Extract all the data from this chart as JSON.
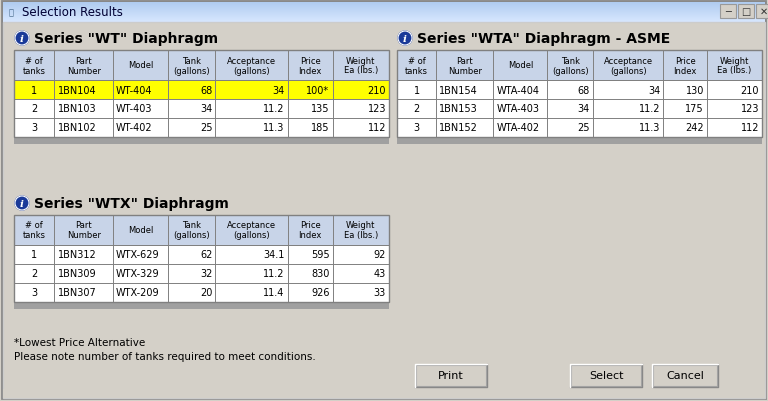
{
  "title": "Selection Results",
  "bg_color": "#d4d0c8",
  "inner_bg": "#ece9d8",
  "table_bg": "#ffffff",
  "header_bg": "#c8d4e8",
  "titlebar_color": "#c0d8f0",
  "highlight_row_bg": "#ffff00",
  "section1_title": "Series \"WT\" Diaphragm",
  "section2_title": "Series \"WTA\" Diaphragm - ASME",
  "section3_title": "Series \"WTX\" Diaphragm",
  "col_headers": [
    "# of\ntanks",
    "Part\nNumber",
    "Model",
    "Tank\n(gallons)",
    "Acceptance\n(gallons)",
    "Price\nIndex",
    "Weight\nEa (lbs.)"
  ],
  "wt_data": [
    [
      "1",
      "1BN104",
      "WT-404",
      "68",
      "34",
      "100*",
      "210"
    ],
    [
      "2",
      "1BN103",
      "WT-403",
      "34",
      "11.2",
      "135",
      "123"
    ],
    [
      "3",
      "1BN102",
      "WT-402",
      "25",
      "11.3",
      "185",
      "112"
    ]
  ],
  "wt_highlight_row": 0,
  "wta_data": [
    [
      "1",
      "1BN154",
      "WTA-404",
      "68",
      "34",
      "130",
      "210"
    ],
    [
      "2",
      "1BN153",
      "WTA-403",
      "34",
      "11.2",
      "175",
      "123"
    ],
    [
      "3",
      "1BN152",
      "WTA-402",
      "25",
      "11.3",
      "242",
      "112"
    ]
  ],
  "wtx_data": [
    [
      "1",
      "1BN312",
      "WTX-629",
      "62",
      "34.1",
      "595",
      "92"
    ],
    [
      "2",
      "1BN309",
      "WTX-329",
      "32",
      "11.2",
      "830",
      "43"
    ],
    [
      "3",
      "1BN307",
      "WTX-209",
      "20",
      "11.4",
      "926",
      "33"
    ]
  ],
  "footnote1": "*Lowest Price Alternative",
  "footnote2": "Please note number of tanks required to meet conditions.",
  "btn_print": "Print",
  "btn_select": "Select",
  "btn_cancel": "Cancel",
  "table_border_color": "#808080",
  "gray_strip_color": "#a0a0a0",
  "text_color": "#000000",
  "info_icon_color": "#1a3a99",
  "titlebar_text_color": "#000033",
  "outer_border_color": "#aaaaaa",
  "inner_border_color": "#ffffff",
  "btn_border_color": "#888888"
}
